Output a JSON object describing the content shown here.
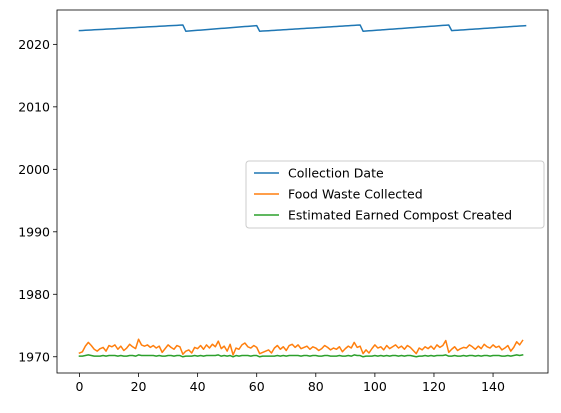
{
  "chart_data": {
    "type": "line",
    "title": "",
    "xlabel": "",
    "ylabel": "",
    "xlim": [
      -7.6,
      158.6
    ],
    "ylim": [
      1967.4,
      2025.5
    ],
    "grid": false,
    "legend_position": "center-right",
    "xticks": [
      0,
      20,
      40,
      60,
      80,
      100,
      120,
      140
    ],
    "xtick_labels": [
      "0",
      "20",
      "40",
      "60",
      "80",
      "100",
      "120",
      "140"
    ],
    "yticks": [
      1970,
      1980,
      1990,
      2000,
      2010,
      2020
    ],
    "ytick_labels": [
      "1970",
      "1980",
      "1990",
      "2000",
      "2010",
      "2020"
    ],
    "series": [
      {
        "name": "Collection Date",
        "color": "#1f77b4",
        "segments": [
          {
            "x_start": 0,
            "x_end": 35,
            "y_start": 2022.2,
            "y_end": 2023.1
          },
          {
            "x_start": 36,
            "x_end": 60,
            "y_start": 2022.1,
            "y_end": 2023.0
          },
          {
            "x_start": 61,
            "x_end": 95,
            "y_start": 2022.1,
            "y_end": 2023.1
          },
          {
            "x_start": 96,
            "x_end": 125,
            "y_start": 2022.1,
            "y_end": 2023.1
          },
          {
            "x_start": 126,
            "x_end": 151,
            "y_start": 2022.2,
            "y_end": 2023.0
          }
        ]
      },
      {
        "name": "Food Waste Collected",
        "color": "#ff7f0e",
        "values": [
          1970.6,
          1970.8,
          1971.7,
          1972.3,
          1971.8,
          1971.2,
          1970.9,
          1971.3,
          1971.5,
          1970.9,
          1971.8,
          1971.6,
          1971.9,
          1971.2,
          1971.7,
          1971.0,
          1971.4,
          1972.0,
          1971.6,
          1971.3,
          1972.8,
          1971.9,
          1971.7,
          1971.9,
          1971.5,
          1971.8,
          1971.4,
          1971.7,
          1970.7,
          1971.3,
          1971.9,
          1971.5,
          1971.2,
          1971.8,
          1971.6,
          1970.4,
          1970.9,
          1971.1,
          1970.6,
          1971.5,
          1971.3,
          1971.8,
          1971.2,
          1971.9,
          1971.4,
          1972.0,
          1971.6,
          1972.5,
          1971.3,
          1971.7,
          1970.9,
          1972.0,
          1970.3,
          1971.4,
          1971.2,
          1971.9,
          1972.2,
          1971.6,
          1971.4,
          1971.8,
          1971.5,
          1970.5,
          1970.7,
          1970.9,
          1971.1,
          1970.6,
          1971.4,
          1971.8,
          1971.2,
          1971.6,
          1971.0,
          1971.8,
          1972.0,
          1971.5,
          1971.9,
          1971.3,
          1971.5,
          1971.7,
          1971.2,
          1971.6,
          1971.4,
          1971.0,
          1971.3,
          1971.8,
          1971.5,
          1971.1,
          1971.4,
          1971.2,
          1971.6,
          1970.8,
          1971.3,
          1971.7,
          1971.4,
          1972.3,
          1971.5,
          1971.7,
          1970.5,
          1971.1,
          1970.6,
          1971.3,
          1971.9,
          1971.4,
          1971.6,
          1971.1,
          1971.8,
          1971.3,
          1971.6,
          1971.9,
          1971.4,
          1971.7,
          1971.2,
          1971.8,
          1971.5,
          1971.0,
          1970.5,
          1971.4,
          1971.1,
          1971.6,
          1971.3,
          1971.7,
          1971.2,
          1971.9,
          1971.5,
          1971.8,
          1972.6,
          1970.7,
          1971.2,
          1971.6,
          1971.0,
          1971.3,
          1971.5,
          1971.4,
          1971.9,
          1971.6,
          1971.2,
          1971.7,
          1971.3,
          1972.0,
          1971.6,
          1971.4,
          1971.9,
          1971.5,
          1971.7,
          1971.1,
          1971.4,
          1971.8,
          1970.9,
          1971.5,
          1972.4,
          1971.9,
          1972.6
        ]
      },
      {
        "name": "Estimated Earned Compost Created",
        "color": "#2ca02c",
        "values": [
          1970.1,
          1970.1,
          1970.2,
          1970.3,
          1970.2,
          1970.1,
          1970.1,
          1970.1,
          1970.2,
          1970.1,
          1970.2,
          1970.2,
          1970.2,
          1970.1,
          1970.2,
          1970.1,
          1970.1,
          1970.2,
          1970.2,
          1970.1,
          1970.3,
          1970.2,
          1970.2,
          1970.2,
          1970.2,
          1970.2,
          1970.1,
          1970.2,
          1970.1,
          1970.1,
          1970.2,
          1970.2,
          1970.1,
          1970.2,
          1970.2,
          1970.0,
          1970.1,
          1970.1,
          1970.1,
          1970.2,
          1970.1,
          1970.2,
          1970.1,
          1970.2,
          1970.2,
          1970.2,
          1970.2,
          1970.3,
          1970.1,
          1970.2,
          1970.1,
          1970.2,
          1970.0,
          1970.2,
          1970.1,
          1970.2,
          1970.2,
          1970.2,
          1970.1,
          1970.2,
          1970.2,
          1970.0,
          1970.1,
          1970.1,
          1970.1,
          1970.1,
          1970.1,
          1970.2,
          1970.1,
          1970.2,
          1970.1,
          1970.2,
          1970.2,
          1970.2,
          1970.2,
          1970.1,
          1970.2,
          1970.2,
          1970.1,
          1970.2,
          1970.2,
          1970.1,
          1970.1,
          1970.2,
          1970.2,
          1970.1,
          1970.1,
          1970.1,
          1970.2,
          1970.1,
          1970.1,
          1970.2,
          1970.1,
          1970.3,
          1970.2,
          1970.2,
          1970.0,
          1970.1,
          1970.1,
          1970.1,
          1970.2,
          1970.1,
          1970.2,
          1970.1,
          1970.2,
          1970.1,
          1970.2,
          1970.2,
          1970.1,
          1970.2,
          1970.1,
          1970.2,
          1970.2,
          1970.1,
          1970.0,
          1970.1,
          1970.1,
          1970.2,
          1970.1,
          1970.2,
          1970.1,
          1970.2,
          1970.2,
          1970.2,
          1970.3,
          1970.1,
          1970.1,
          1970.2,
          1970.1,
          1970.1,
          1970.2,
          1970.1,
          1970.2,
          1970.2,
          1970.1,
          1970.2,
          1970.1,
          1970.2,
          1970.2,
          1970.1,
          1970.2,
          1970.2,
          1970.2,
          1970.1,
          1970.1,
          1970.2,
          1970.1,
          1970.2,
          1970.3,
          1970.2,
          1970.3
        ]
      }
    ]
  }
}
